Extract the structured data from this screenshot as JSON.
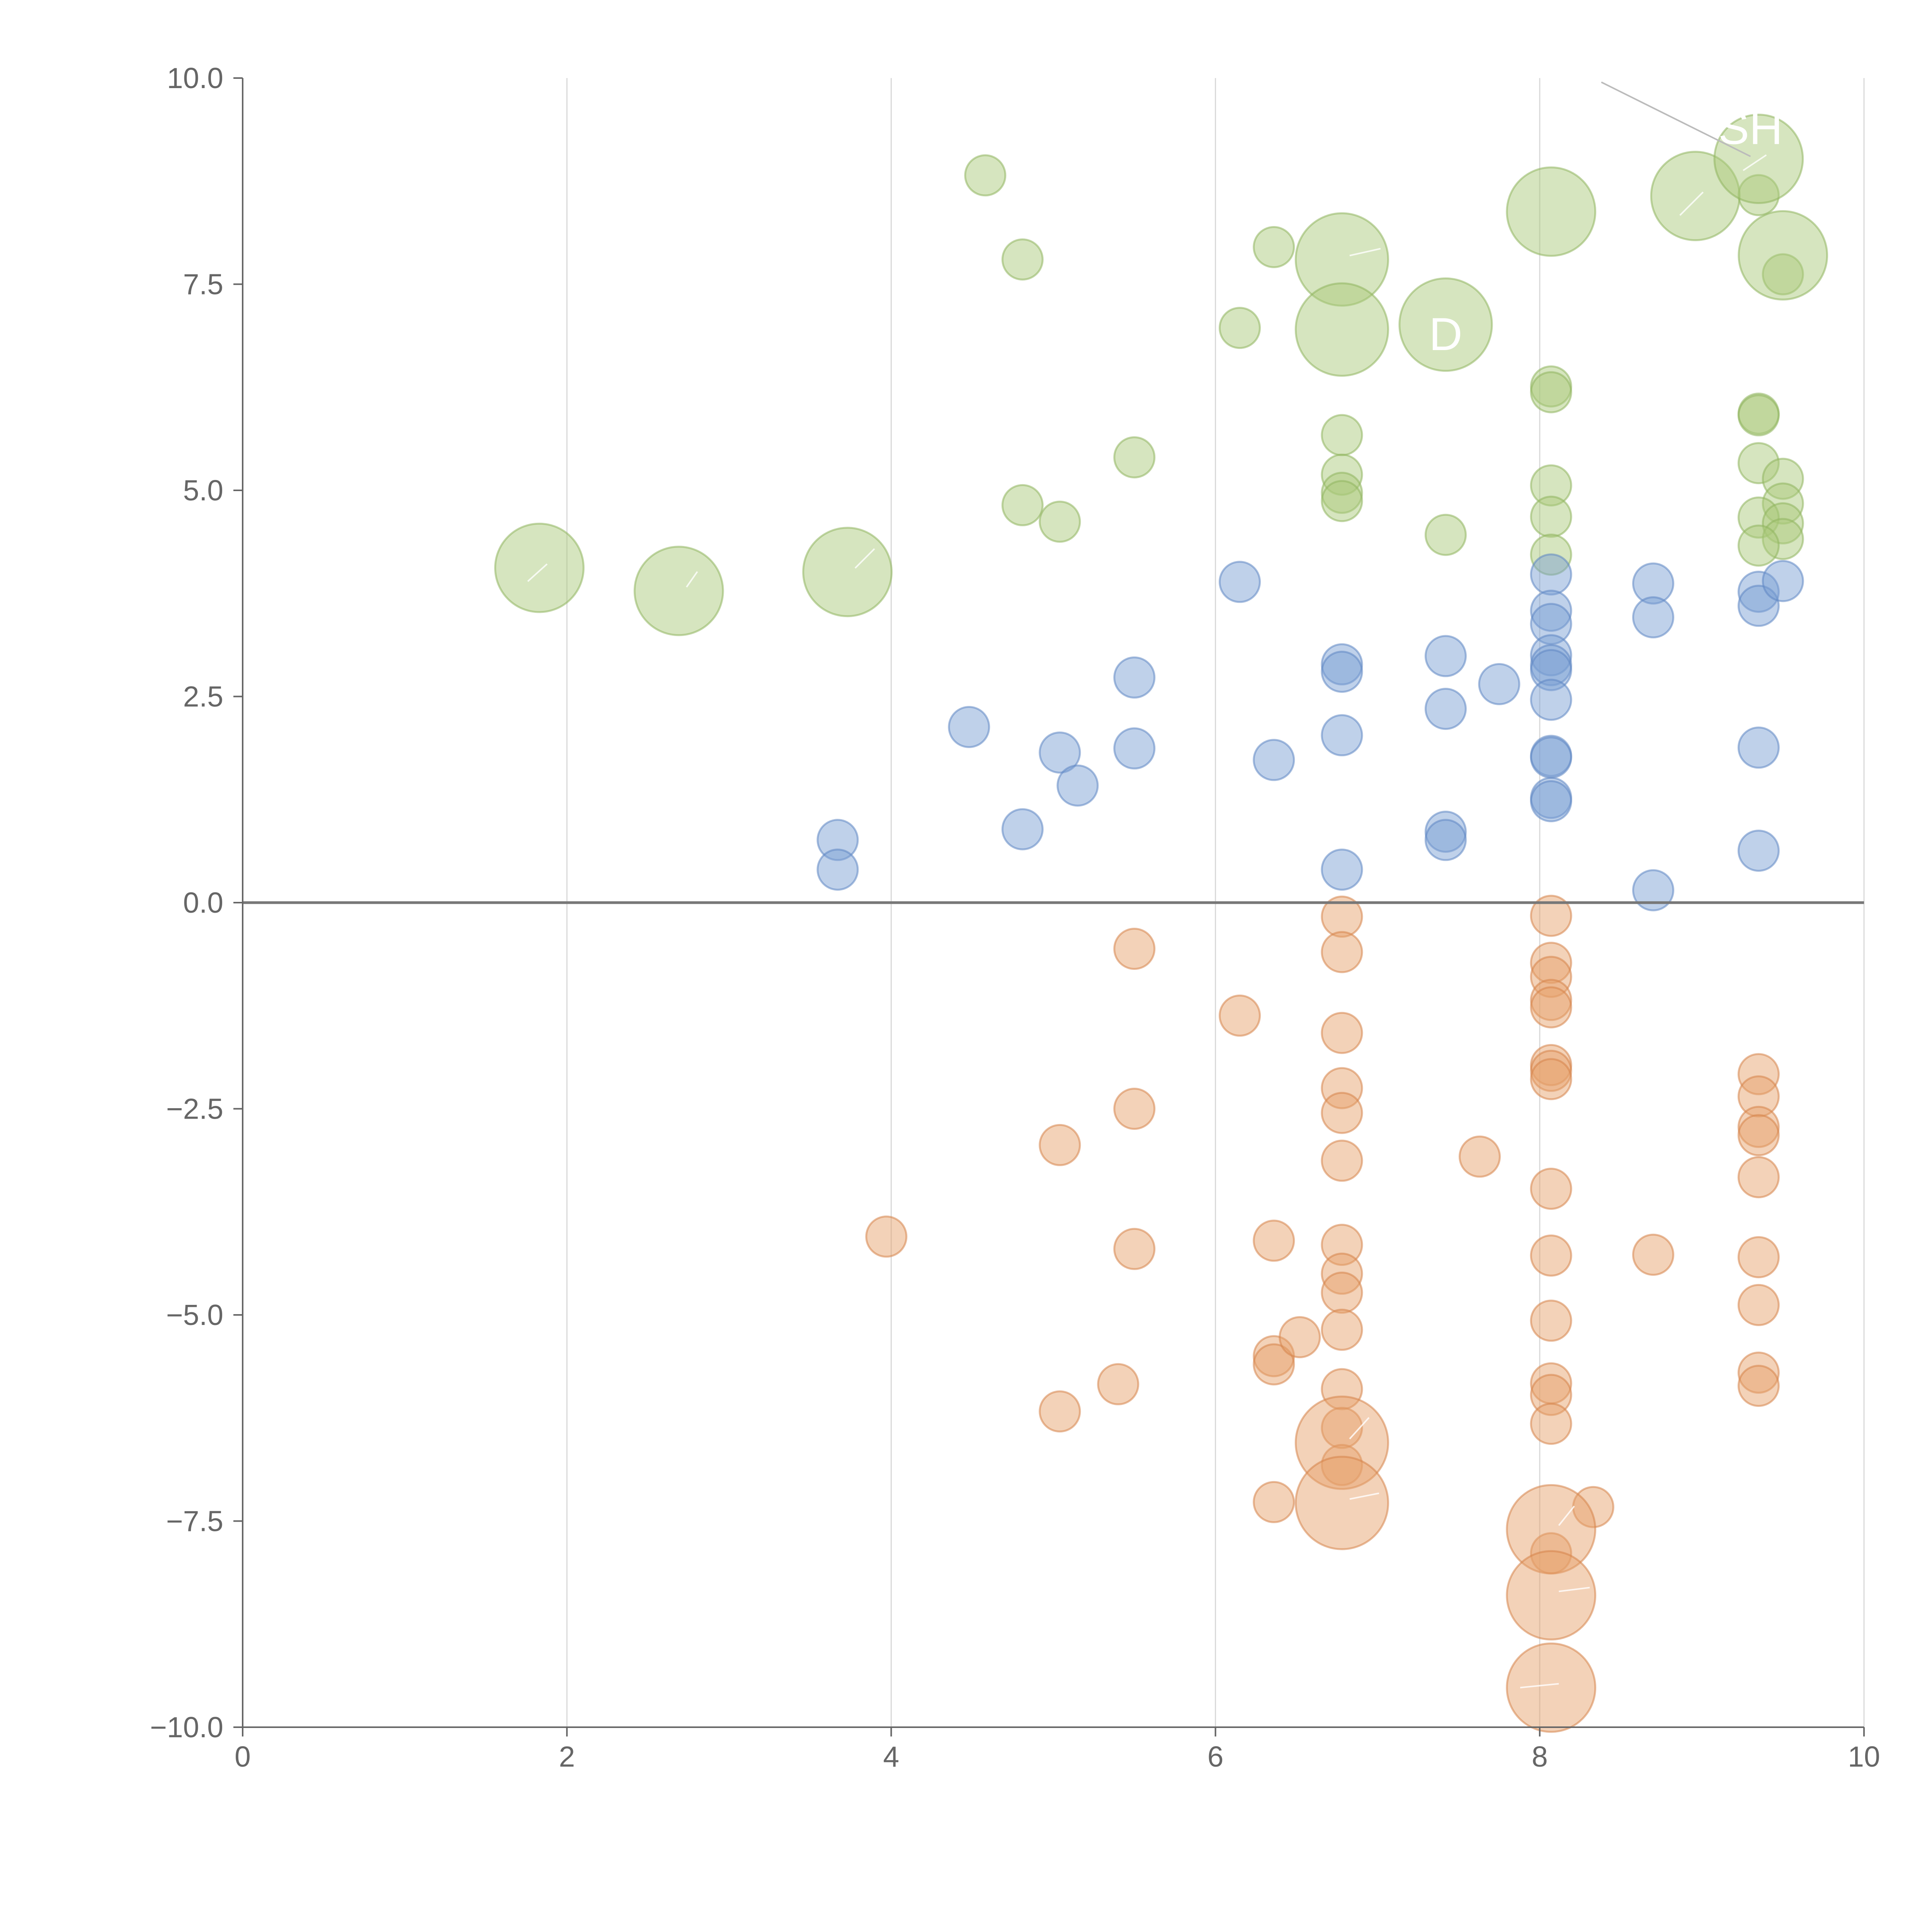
{
  "chart_data": {
    "type": "scatter",
    "title": "",
    "xlabel": "",
    "ylabel": "",
    "xlim": [
      0,
      10
    ],
    "ylim": [
      -10,
      10
    ],
    "x_ticks": [
      0,
      2,
      4,
      6,
      8,
      10
    ],
    "x_tick_labels": [
      "0",
      "2",
      "4",
      "6",
      "8",
      "10"
    ],
    "y_ticks": [
      10,
      7.5,
      5,
      2.5,
      0,
      -2.5,
      -5,
      -7.5,
      -10
    ],
    "y_tick_labels": [
      "10.0",
      "7.5",
      "5.0",
      "2.5",
      "0.0",
      "−2.5",
      "−5.0",
      "−7.5",
      "−10.0"
    ],
    "vertical_grid": true,
    "zero_line": true,
    "colors": {
      "green": "#a9c97a",
      "green_stroke": "#8fb55f",
      "blue": "#7a9fd4",
      "blue_stroke": "#5f86c2",
      "orange": "#e5a06b",
      "orange_stroke": "#d6844a",
      "axis": "#666666",
      "grid": "#d9d9d9",
      "zero": "#777777",
      "leader": "#bbbbbb"
    },
    "series": [
      {
        "name": "green",
        "color_key": "green",
        "points": [
          [
            4.58,
            8.82,
            1
          ],
          [
            4.81,
            7.8,
            1
          ],
          [
            6.36,
            7.95,
            1
          ],
          [
            6.15,
            6.97,
            1
          ],
          [
            5.5,
            5.4,
            1
          ],
          [
            4.81,
            4.82,
            1
          ],
          [
            5.04,
            4.62,
            1
          ],
          [
            6.78,
            5.67,
            1
          ],
          [
            6.78,
            5.19,
            1
          ],
          [
            6.78,
            4.97,
            1
          ],
          [
            6.78,
            4.87,
            1
          ],
          [
            7.42,
            4.46,
            1
          ],
          [
            8.07,
            6.26,
            1
          ],
          [
            8.07,
            6.19,
            1
          ],
          [
            8.07,
            5.06,
            1
          ],
          [
            8.07,
            4.68,
            1
          ],
          [
            8.07,
            4.22,
            1
          ],
          [
            9.35,
            8.58,
            1
          ],
          [
            9.35,
            5.93,
            1
          ],
          [
            9.35,
            5.91,
            1
          ],
          [
            9.35,
            5.33,
            1
          ],
          [
            9.5,
            5.14,
            1
          ],
          [
            9.5,
            4.84,
            1
          ],
          [
            9.35,
            4.67,
            1
          ],
          [
            9.5,
            4.6,
            1
          ],
          [
            9.5,
            4.41,
            1
          ],
          [
            9.35,
            4.33,
            1
          ],
          [
            9.5,
            7.62,
            1
          ],
          [
            1.83,
            4.06,
            2.2
          ],
          [
            2.69,
            3.78,
            2.2
          ],
          [
            3.73,
            4.01,
            2.2
          ],
          [
            6.78,
            7.8,
            2.3
          ],
          [
            6.78,
            6.95,
            2.3
          ],
          [
            7.42,
            7.01,
            2.3
          ],
          [
            8.07,
            8.38,
            2.2
          ],
          [
            8.96,
            8.57,
            2.2
          ],
          [
            9.5,
            7.85,
            2.2
          ],
          [
            9.35,
            9.02,
            2.2
          ]
        ]
      },
      {
        "name": "blue",
        "color_key": "blue",
        "points": [
          [
            3.67,
            0.76,
            1
          ],
          [
            3.67,
            0.4,
            1
          ],
          [
            4.48,
            2.13,
            1
          ],
          [
            4.81,
            0.89,
            1
          ],
          [
            5.04,
            1.82,
            1
          ],
          [
            5.15,
            1.42,
            1
          ],
          [
            5.5,
            2.73,
            1
          ],
          [
            5.5,
            1.87,
            1
          ],
          [
            6.15,
            3.89,
            1
          ],
          [
            6.36,
            1.73,
            1
          ],
          [
            6.78,
            2.89,
            1
          ],
          [
            6.78,
            2.8,
            1
          ],
          [
            6.78,
            2.03,
            1
          ],
          [
            6.78,
            0.4,
            1
          ],
          [
            7.42,
            2.99,
            1
          ],
          [
            7.42,
            2.35,
            1
          ],
          [
            7.42,
            0.86,
            1
          ],
          [
            7.42,
            0.76,
            1
          ],
          [
            7.75,
            2.65,
            1
          ],
          [
            8.07,
            3.98,
            1
          ],
          [
            8.07,
            3.54,
            1
          ],
          [
            8.07,
            3.38,
            1
          ],
          [
            8.07,
            3.0,
            1
          ],
          [
            8.07,
            2.88,
            1
          ],
          [
            8.07,
            2.82,
            1
          ],
          [
            8.07,
            2.46,
            1
          ],
          [
            8.07,
            1.78,
            1
          ],
          [
            8.07,
            1.76,
            1
          ],
          [
            8.07,
            1.27,
            1
          ],
          [
            8.07,
            1.23,
            1
          ],
          [
            8.7,
            3.87,
            1
          ],
          [
            8.7,
            3.46,
            1
          ],
          [
            8.7,
            0.15,
            1
          ],
          [
            9.35,
            3.77,
            1
          ],
          [
            9.35,
            3.6,
            1
          ],
          [
            9.5,
            3.9,
            1
          ],
          [
            9.35,
            1.88,
            1
          ],
          [
            9.35,
            0.63,
            1
          ]
        ]
      },
      {
        "name": "orange",
        "color_key": "orange",
        "points": [
          [
            3.97,
            -4.05,
            1
          ],
          [
            5.5,
            -0.56,
            1
          ],
          [
            5.5,
            -2.5,
            1
          ],
          [
            5.04,
            -2.94,
            1
          ],
          [
            5.5,
            -4.2,
            1
          ],
          [
            5.04,
            -6.17,
            1
          ],
          [
            5.4,
            -5.84,
            1
          ],
          [
            6.15,
            -1.37,
            1
          ],
          [
            6.36,
            -4.1,
            1
          ],
          [
            6.36,
            -5.5,
            1
          ],
          [
            6.36,
            -5.6,
            1
          ],
          [
            6.52,
            -5.27,
            1
          ],
          [
            6.36,
            -7.27,
            1
          ],
          [
            6.78,
            -0.17,
            1
          ],
          [
            6.78,
            -0.6,
            1
          ],
          [
            6.78,
            -1.58,
            1
          ],
          [
            6.78,
            -2.25,
            1
          ],
          [
            6.78,
            -2.55,
            1
          ],
          [
            6.78,
            -3.13,
            1
          ],
          [
            6.78,
            -4.15,
            1
          ],
          [
            6.78,
            -4.5,
            1
          ],
          [
            6.78,
            -4.73,
            1
          ],
          [
            6.78,
            -5.18,
            1
          ],
          [
            6.78,
            -5.9,
            1
          ],
          [
            6.78,
            -6.37,
            1
          ],
          [
            6.78,
            -6.82,
            1
          ],
          [
            7.63,
            -3.08,
            1
          ],
          [
            8.07,
            -0.16,
            1
          ],
          [
            8.07,
            -0.73,
            1
          ],
          [
            8.07,
            -0.9,
            1
          ],
          [
            8.07,
            -1.18,
            1
          ],
          [
            8.07,
            -1.27,
            1
          ],
          [
            8.07,
            -1.97,
            1
          ],
          [
            8.07,
            -2.04,
            1
          ],
          [
            8.07,
            -2.14,
            1
          ],
          [
            8.07,
            -3.47,
            1
          ],
          [
            8.07,
            -4.28,
            1
          ],
          [
            8.07,
            -5.07,
            1
          ],
          [
            8.07,
            -5.83,
            1
          ],
          [
            8.07,
            -5.97,
            1
          ],
          [
            8.07,
            -6.32,
            1
          ],
          [
            8.07,
            -7.89,
            1
          ],
          [
            8.33,
            -7.33,
            1
          ],
          [
            8.7,
            -4.27,
            1
          ],
          [
            9.35,
            -2.08,
            1
          ],
          [
            9.35,
            -2.35,
            1
          ],
          [
            9.35,
            -2.72,
            1
          ],
          [
            9.35,
            -2.82,
            1
          ],
          [
            9.35,
            -3.33,
            1
          ],
          [
            9.35,
            -4.3,
            1
          ],
          [
            9.35,
            -4.88,
            1
          ],
          [
            9.35,
            -5.7,
            1
          ],
          [
            9.35,
            -5.86,
            1
          ],
          [
            6.78,
            -6.55,
            2.3
          ],
          [
            6.78,
            -7.28,
            2.3
          ],
          [
            8.07,
            -7.6,
            2.2
          ],
          [
            8.07,
            -8.4,
            2.2
          ],
          [
            8.07,
            -9.52,
            2.2
          ]
        ]
      }
    ],
    "annotations": [
      {
        "label": "D",
        "x": 7.42,
        "y": 6.7
      },
      {
        "label": "SH",
        "x": 9.3,
        "y": 9.2
      }
    ]
  }
}
